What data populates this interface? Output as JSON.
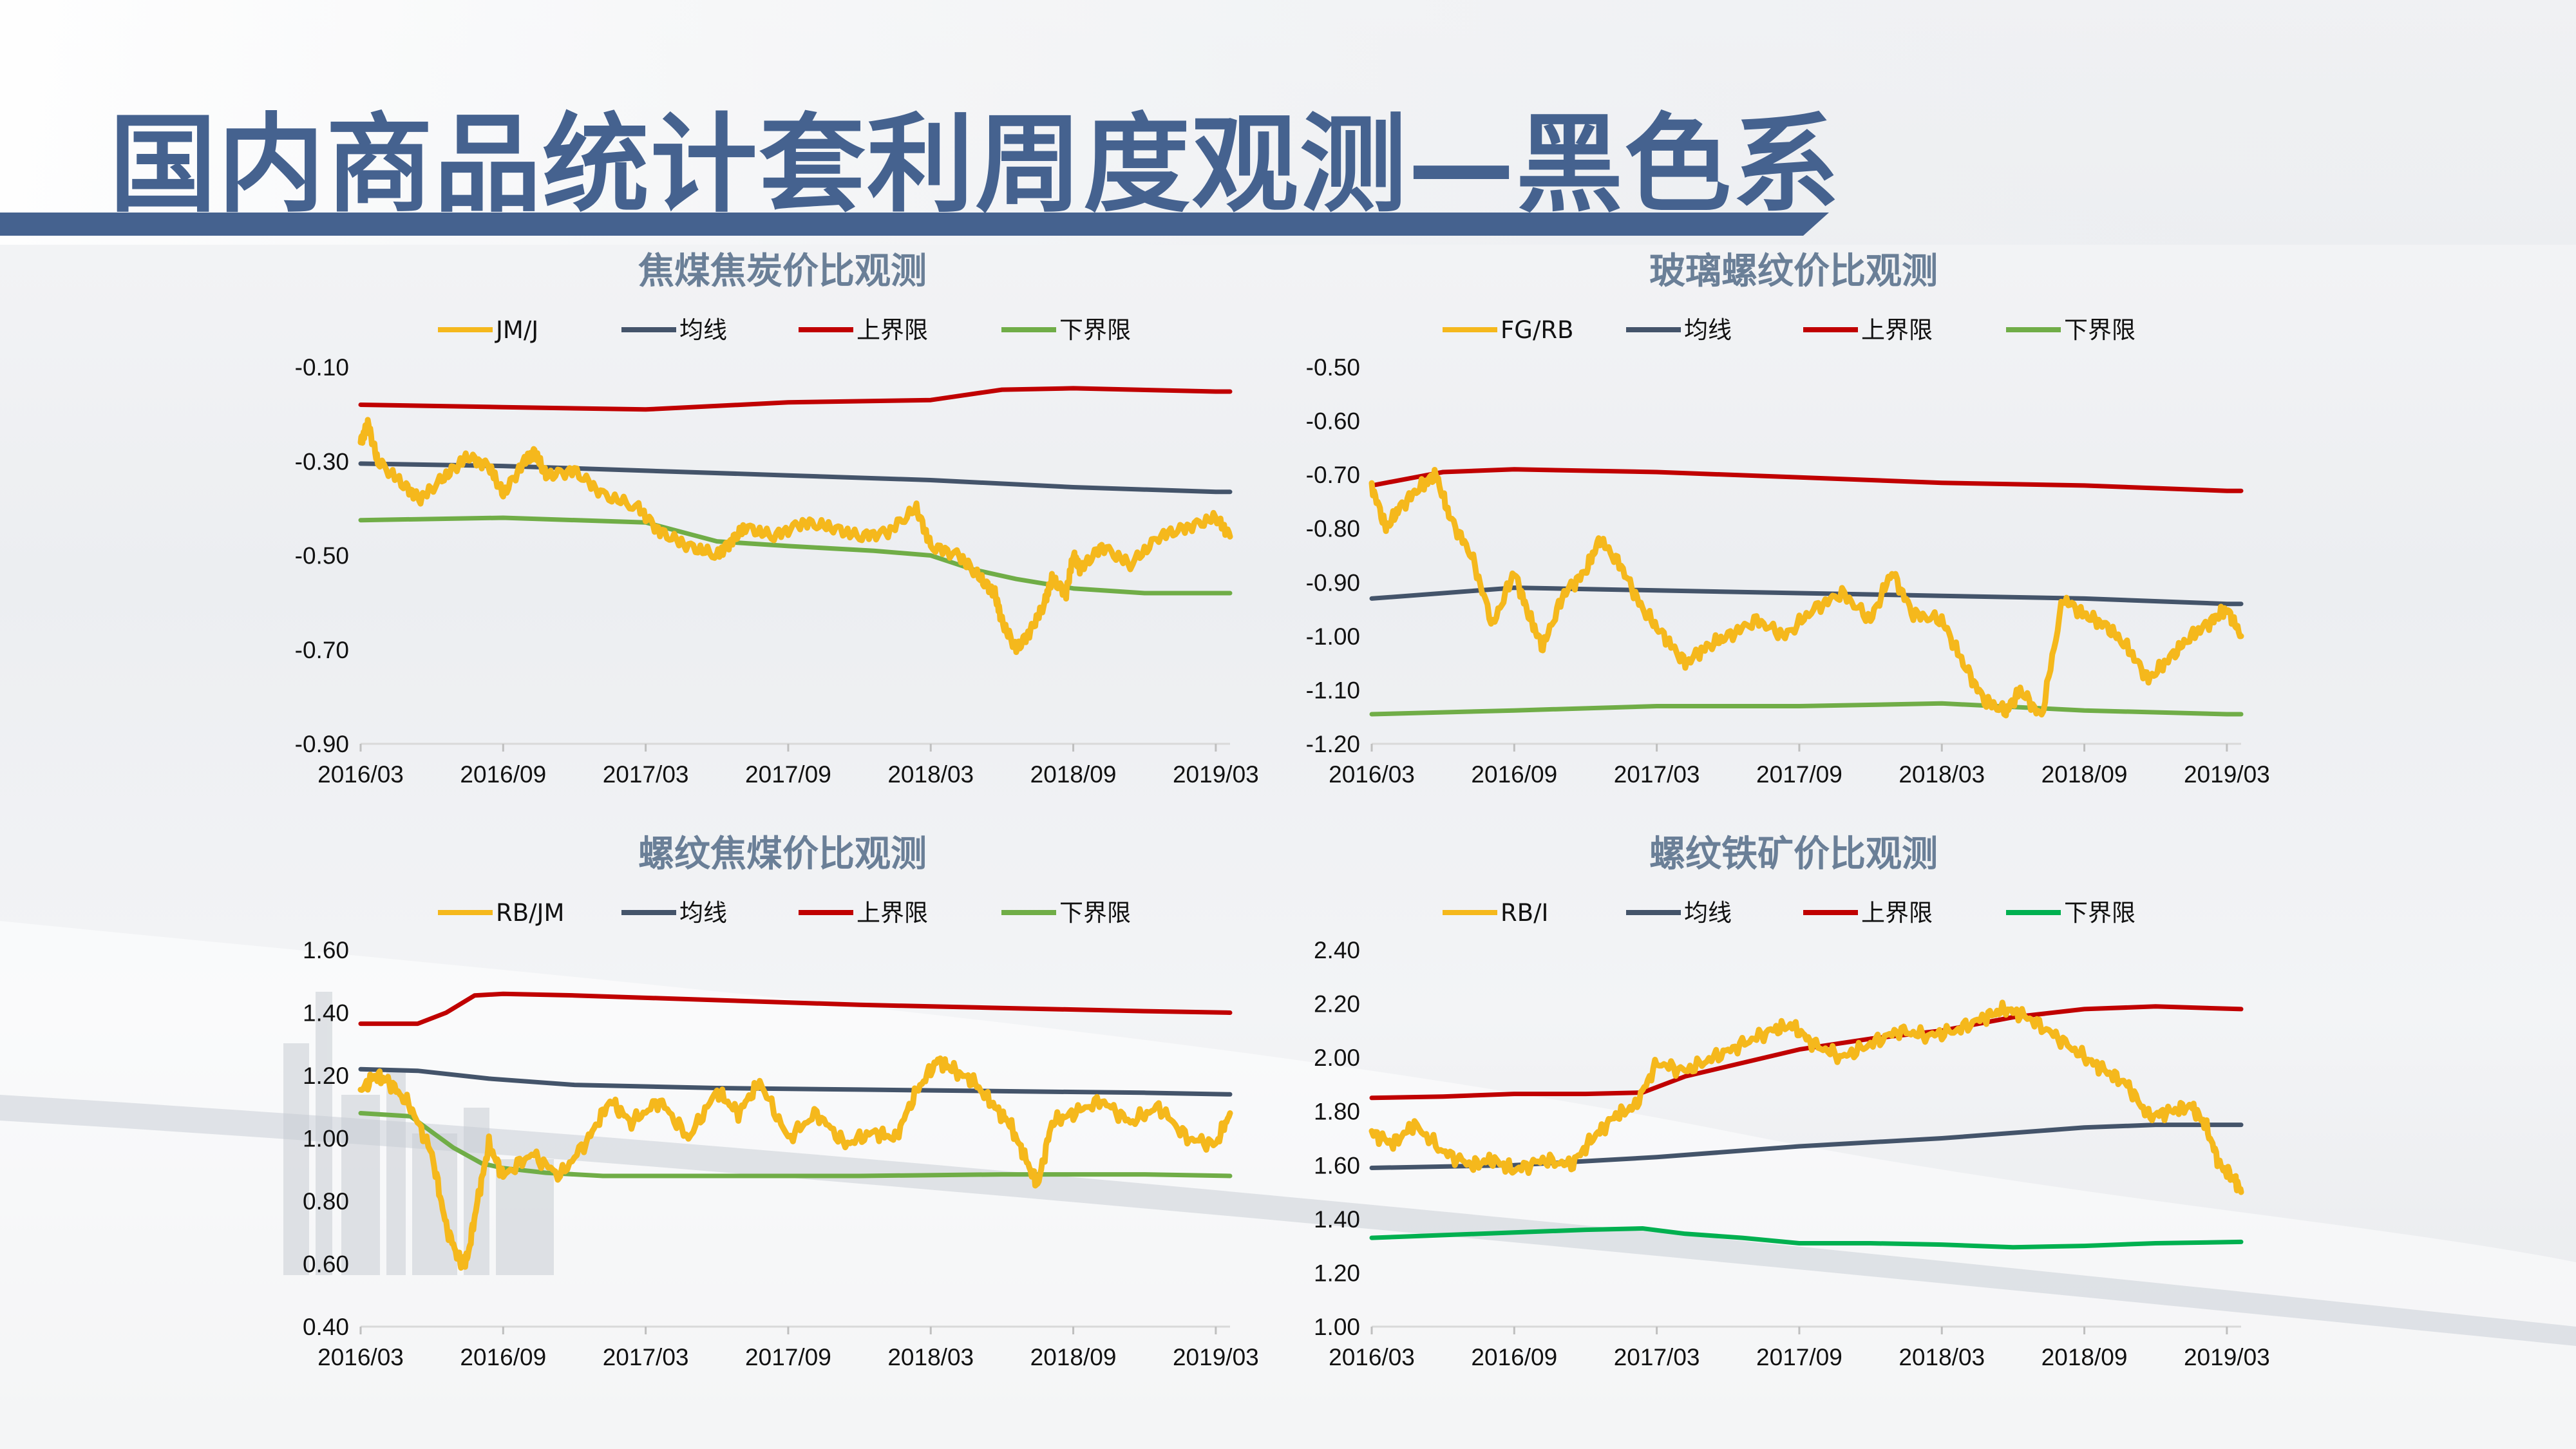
{
  "page_title": "国内商品统计套利周度观测—黑色系",
  "colors": {
    "title": "#45628f",
    "chart_title": "#6a7f97",
    "yellow": "#f5b81c",
    "navy": "#44546a",
    "red": "#c00000",
    "green": "#70ad47",
    "bright_green": "#00b050"
  },
  "chart_data": [
    {
      "type": "line",
      "title": "焦煤焦炭价比观测",
      "categories": [
        "2016/03",
        "2016/09",
        "2017/03",
        "2017/09",
        "2018/03",
        "2018/09",
        "2019/03"
      ],
      "ylim": [
        -0.9,
        -0.1
      ],
      "yticks": [
        "-0.10",
        "-0.30",
        "-0.50",
        "-0.70",
        "-0.90"
      ],
      "legend": [
        "JM/J",
        "均线",
        "上界限",
        "下界限"
      ],
      "series": [
        {
          "name": "JM/J",
          "color": "#f5b81c",
          "noisy": true,
          "x": [
            0,
            0.05,
            0.12,
            0.3,
            0.42,
            0.6,
            0.75,
            0.9,
            1.0,
            1.15,
            1.22,
            1.3,
            1.5,
            1.7,
            1.95,
            2.1,
            2.3,
            2.5,
            2.6,
            2.7,
            2.9,
            3.1,
            3.3,
            3.5,
            3.7,
            3.9,
            4.0,
            4.2,
            4.35,
            4.45,
            4.5,
            4.6,
            4.7,
            4.8,
            4.85,
            4.95,
            5.0,
            5.05,
            5.2,
            5.4,
            5.6,
            5.8,
            6.0,
            6.1
          ],
          "y": [
            -0.26,
            -0.22,
            -0.3,
            -0.35,
            -0.38,
            -0.33,
            -0.29,
            -0.31,
            -0.37,
            -0.3,
            -0.28,
            -0.33,
            -0.32,
            -0.37,
            -0.4,
            -0.45,
            -0.48,
            -0.5,
            -0.47,
            -0.44,
            -0.46,
            -0.43,
            -0.44,
            -0.46,
            -0.45,
            -0.4,
            -0.48,
            -0.5,
            -0.55,
            -0.58,
            -0.64,
            -0.7,
            -0.66,
            -0.6,
            -0.55,
            -0.58,
            -0.5,
            -0.53,
            -0.48,
            -0.52,
            -0.46,
            -0.44,
            -0.42,
            -0.46
          ]
        },
        {
          "name": "均线",
          "color": "#44546a",
          "x": [
            0,
            1,
            2,
            3,
            4,
            5,
            6,
            6.1
          ],
          "y": [
            -0.305,
            -0.31,
            -0.32,
            -0.33,
            -0.34,
            -0.355,
            -0.365,
            -0.365
          ]
        },
        {
          "name": "上界限",
          "color": "#c00000",
          "x": [
            0,
            1,
            2,
            3,
            4,
            4.5,
            5,
            6,
            6.1
          ],
          "y": [
            -0.18,
            -0.185,
            -0.19,
            -0.175,
            -0.17,
            -0.148,
            -0.145,
            -0.152,
            -0.152
          ]
        },
        {
          "name": "下界限",
          "color": "#70ad47",
          "x": [
            0,
            1,
            2,
            2.5,
            3,
            3.6,
            4,
            4.3,
            4.6,
            5,
            5.5,
            6.1
          ],
          "y": [
            -0.425,
            -0.42,
            -0.43,
            -0.47,
            -0.48,
            -0.49,
            -0.5,
            -0.53,
            -0.55,
            -0.57,
            -0.58,
            -0.58
          ]
        }
      ]
    },
    {
      "type": "line",
      "title": "玻璃螺纹价比观测",
      "categories": [
        "2016/03",
        "2016/09",
        "2017/03",
        "2017/09",
        "2018/03",
        "2018/09",
        "2019/03"
      ],
      "ylim": [
        -1.2,
        -0.5
      ],
      "yticks": [
        "-0.50",
        "-0.60",
        "-0.70",
        "-0.80",
        "-0.90",
        "-1.00",
        "-1.10",
        "-1.20"
      ],
      "legend": [
        "FG/RB",
        "均线",
        "上界限",
        "下界限"
      ],
      "series": [
        {
          "name": "FG/RB",
          "color": "#f5b81c",
          "noisy": true,
          "x": [
            0,
            0.1,
            0.2,
            0.35,
            0.45,
            0.55,
            0.7,
            0.85,
            1.0,
            1.1,
            1.2,
            1.35,
            1.5,
            1.6,
            1.75,
            1.9,
            2.05,
            2.2,
            2.35,
            2.5,
            2.7,
            2.9,
            3.1,
            3.3,
            3.5,
            3.65,
            3.8,
            4.0,
            4.15,
            4.3,
            4.45,
            4.55,
            4.7,
            4.85,
            5.0,
            5.15,
            5.3,
            5.45,
            5.6,
            5.75,
            5.9,
            6.0,
            6.1
          ],
          "y": [
            -0.72,
            -0.8,
            -0.76,
            -0.72,
            -0.7,
            -0.78,
            -0.85,
            -0.98,
            -0.88,
            -0.96,
            -1.02,
            -0.92,
            -0.88,
            -0.82,
            -0.87,
            -0.95,
            -1.0,
            -1.05,
            -1.02,
            -1.0,
            -0.97,
            -1.0,
            -0.95,
            -0.92,
            -0.97,
            -0.88,
            -0.96,
            -0.97,
            -1.05,
            -1.12,
            -1.14,
            -1.1,
            -1.15,
            -0.93,
            -0.96,
            -0.98,
            -1.02,
            -1.08,
            -1.04,
            -1.0,
            -0.97,
            -0.95,
            -1.0
          ]
        },
        {
          "name": "均线",
          "color": "#44546a",
          "x": [
            0,
            1,
            2,
            3,
            4,
            5,
            6,
            6.1
          ],
          "y": [
            -0.93,
            -0.91,
            -0.915,
            -0.92,
            -0.925,
            -0.93,
            -0.94,
            -0.94
          ]
        },
        {
          "name": "上界限",
          "color": "#c00000",
          "x": [
            0,
            0.5,
            1,
            2,
            3,
            4,
            5,
            6,
            6.1
          ],
          "y": [
            -0.72,
            -0.695,
            -0.69,
            -0.695,
            -0.705,
            -0.715,
            -0.72,
            -0.73,
            -0.73
          ]
        },
        {
          "name": "下界限",
          "color": "#70ad47",
          "x": [
            0,
            1,
            2,
            3,
            4,
            5,
            6,
            6.1
          ],
          "y": [
            -1.145,
            -1.138,
            -1.13,
            -1.13,
            -1.125,
            -1.138,
            -1.145,
            -1.145
          ]
        }
      ]
    },
    {
      "type": "line",
      "title": "螺纹焦煤价比观测",
      "categories": [
        "2016/03",
        "2016/09",
        "2017/03",
        "2017/09",
        "2018/03",
        "2018/09",
        "2019/03"
      ],
      "ylim": [
        0.4,
        1.6
      ],
      "yticks": [
        "1.60",
        "1.40",
        "1.20",
        "1.00",
        "0.80",
        "0.60",
        "0.40"
      ],
      "legend": [
        "RB/JM",
        "均线",
        "上界限",
        "下界限"
      ],
      "series": [
        {
          "name": "RB/JM",
          "color": "#f5b81c",
          "noisy": true,
          "x": [
            0,
            0.1,
            0.2,
            0.35,
            0.5,
            0.6,
            0.7,
            0.75,
            0.82,
            0.9,
            1.0,
            1.2,
            1.4,
            1.6,
            1.75,
            1.9,
            2.1,
            2.3,
            2.5,
            2.65,
            2.8,
            3.0,
            3.2,
            3.4,
            3.6,
            3.75,
            3.9,
            4.05,
            4.15,
            4.3,
            4.45,
            4.55,
            4.65,
            4.75,
            4.85,
            5.0,
            5.2,
            5.4,
            5.6,
            5.8,
            6.0,
            6.1
          ],
          "y": [
            1.15,
            1.2,
            1.18,
            1.1,
            0.95,
            0.72,
            0.6,
            0.62,
            0.8,
            0.98,
            0.88,
            0.95,
            0.88,
            1.0,
            1.12,
            1.05,
            1.12,
            1.0,
            1.15,
            1.08,
            1.18,
            1.0,
            1.08,
            0.98,
            1.02,
            1.0,
            1.15,
            1.25,
            1.22,
            1.18,
            1.1,
            1.05,
            0.95,
            0.85,
            1.05,
            1.08,
            1.12,
            1.05,
            1.1,
            1.0,
            0.98,
            1.08
          ]
        },
        {
          "name": "均线",
          "color": "#44546a",
          "x": [
            0,
            0.4,
            0.9,
            1.5,
            2.5,
            3.5,
            4.5,
            5.5,
            6.1
          ],
          "y": [
            1.22,
            1.215,
            1.19,
            1.17,
            1.16,
            1.155,
            1.15,
            1.145,
            1.14
          ]
        },
        {
          "name": "上界限",
          "color": "#c00000",
          "x": [
            0,
            0.4,
            0.6,
            0.8,
            1.0,
            1.5,
            2.5,
            3.5,
            4.5,
            5.5,
            6.1
          ],
          "y": [
            1.365,
            1.365,
            1.4,
            1.455,
            1.46,
            1.455,
            1.44,
            1.425,
            1.415,
            1.405,
            1.4
          ]
        },
        {
          "name": "下界限",
          "color": "#70ad47",
          "x": [
            0,
            0.35,
            0.5,
            0.65,
            0.85,
            1.0,
            1.3,
            1.7,
            2.5,
            3.5,
            4.5,
            5.5,
            6.1
          ],
          "y": [
            1.08,
            1.07,
            1.02,
            0.97,
            0.92,
            0.905,
            0.89,
            0.88,
            0.88,
            0.88,
            0.885,
            0.885,
            0.88
          ]
        }
      ]
    },
    {
      "type": "line",
      "title": "螺纹铁矿价比观测",
      "categories": [
        "2016/03",
        "2016/09",
        "2017/03",
        "2017/09",
        "2018/03",
        "2018/09",
        "2019/03"
      ],
      "ylim": [
        1.0,
        2.4
      ],
      "yticks": [
        "2.40",
        "2.20",
        "2.00",
        "1.80",
        "1.60",
        "1.40",
        "1.20",
        "1.00"
      ],
      "legend": [
        "RB/I",
        "均线",
        "上界限",
        "下界限"
      ],
      "series": [
        {
          "name": "RB/I",
          "color": "#f5b81c",
          "noisy": true,
          "x": [
            0,
            0.15,
            0.3,
            0.5,
            0.7,
            0.85,
            1.0,
            1.2,
            1.4,
            1.55,
            1.7,
            1.85,
            2.0,
            2.2,
            2.4,
            2.6,
            2.8,
            2.95,
            3.1,
            3.3,
            3.5,
            3.7,
            3.9,
            4.1,
            4.3,
            4.45,
            4.6,
            4.8,
            5.0,
            5.15,
            5.3,
            5.45,
            5.6,
            5.75,
            5.85,
            5.95,
            6.05,
            6.1
          ],
          "y": [
            1.72,
            1.68,
            1.75,
            1.65,
            1.6,
            1.62,
            1.58,
            1.62,
            1.6,
            1.7,
            1.78,
            1.82,
            1.98,
            1.95,
            2.0,
            2.05,
            2.1,
            2.12,
            2.05,
            2.0,
            2.05,
            2.1,
            2.08,
            2.1,
            2.15,
            2.18,
            2.15,
            2.08,
            2.0,
            1.95,
            1.9,
            1.78,
            1.8,
            1.82,
            1.75,
            1.6,
            1.55,
            1.5
          ]
        },
        {
          "name": "均线",
          "color": "#44546a",
          "x": [
            0,
            1,
            2,
            3,
            4,
            5,
            5.5,
            6.1
          ],
          "y": [
            1.59,
            1.6,
            1.63,
            1.67,
            1.7,
            1.74,
            1.75,
            1.75
          ]
        },
        {
          "name": "上界限",
          "color": "#c00000",
          "x": [
            0,
            0.5,
            1,
            1.5,
            1.9,
            2.2,
            2.6,
            3,
            3.5,
            4,
            4.5,
            5,
            5.5,
            6.1
          ],
          "y": [
            1.85,
            1.855,
            1.865,
            1.865,
            1.87,
            1.93,
            1.98,
            2.03,
            2.07,
            2.1,
            2.15,
            2.18,
            2.19,
            2.18
          ]
        },
        {
          "name": "下界限",
          "color": "#00b050",
          "x": [
            0,
            0.5,
            1,
            1.5,
            1.9,
            2.2,
            2.6,
            3,
            3.5,
            4,
            4.5,
            5,
            5.5,
            6.1
          ],
          "y": [
            1.33,
            1.34,
            1.35,
            1.36,
            1.365,
            1.345,
            1.33,
            1.31,
            1.31,
            1.305,
            1.295,
            1.3,
            1.31,
            1.315
          ]
        }
      ]
    }
  ]
}
